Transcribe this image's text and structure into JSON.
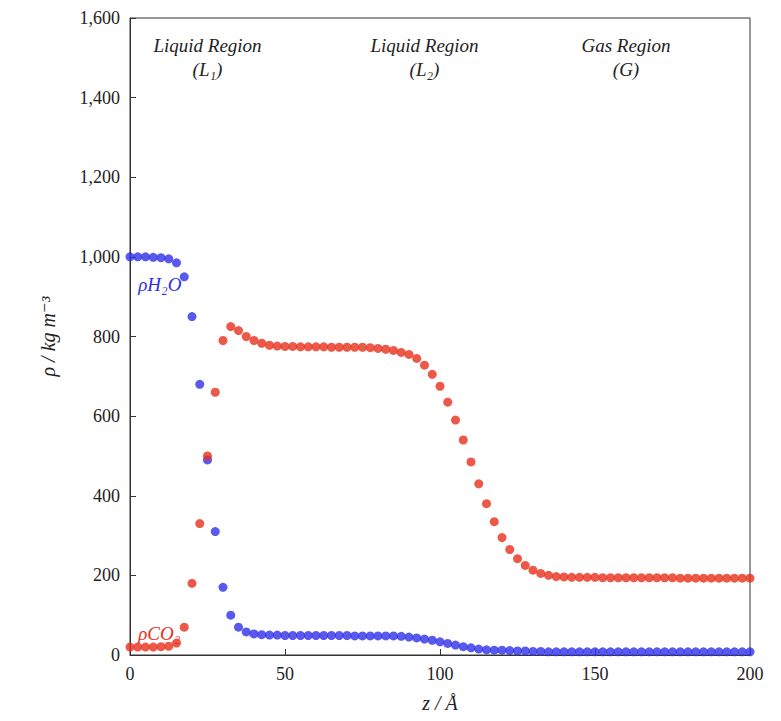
{
  "chart_data": {
    "type": "scatter",
    "x_label": "z / Å",
    "y_label": "ρ / kg m⁻³",
    "annotations": [
      "Liquid Region (L₁)",
      "Liquid Region (L₂)",
      "Gas Region (G)"
    ],
    "xlim": [
      0,
      200
    ],
    "xticks": [
      0,
      50,
      100,
      150,
      200
    ],
    "ylim": [
      0,
      1600
    ],
    "yticks": [
      0,
      200,
      400,
      600,
      800,
      1000,
      1200,
      1400,
      1600
    ],
    "grid": false,
    "marker": "circle",
    "x": [
      0,
      2.5,
      5,
      7.5,
      10,
      12.5,
      15,
      17.5,
      20,
      22.5,
      25,
      27.5,
      30,
      32.5,
      35,
      37.5,
      40,
      42.5,
      45,
      47.5,
      50,
      52.5,
      55,
      57.5,
      60,
      62.5,
      65,
      67.5,
      70,
      72.5,
      75,
      77.5,
      80,
      82.5,
      85,
      87.5,
      90,
      92.5,
      95,
      97.5,
      100,
      102.5,
      105,
      107.5,
      110,
      112.5,
      115,
      117.5,
      120,
      122.5,
      125,
      127.5,
      130,
      132.5,
      135,
      137.5,
      140,
      142.5,
      145,
      147.5,
      150,
      152.5,
      155,
      157.5,
      160,
      162.5,
      165,
      167.5,
      170,
      172.5,
      175,
      177.5,
      180,
      182.5,
      185,
      187.5,
      190,
      192.5,
      195,
      197.5,
      200
    ],
    "series": [
      {
        "name": "ρH₂O",
        "color": "#2f2fe8",
        "values": [
          1000,
          1000,
          1000,
          999,
          998,
          995,
          985,
          950,
          850,
          680,
          490,
          310,
          170,
          100,
          70,
          58,
          53,
          51,
          50,
          50,
          49,
          49,
          49,
          49,
          49,
          49,
          49,
          49,
          49,
          48,
          48,
          48,
          48,
          48,
          48,
          47,
          45,
          43,
          40,
          37,
          33,
          29,
          25,
          21,
          18,
          15,
          13,
          12,
          12,
          11,
          10,
          10,
          9,
          9,
          8,
          8,
          8,
          8,
          8,
          8,
          8,
          8,
          8,
          8,
          8,
          8,
          8,
          8,
          8,
          8,
          8,
          8,
          8,
          8,
          8,
          8,
          8,
          8,
          8,
          8,
          8
        ]
      },
      {
        "name": "ρCO₂",
        "color": "#e8301c",
        "values": [
          20,
          20,
          20,
          20,
          21,
          22,
          30,
          70,
          180,
          330,
          500,
          660,
          790,
          825,
          815,
          800,
          790,
          783,
          778,
          776,
          775,
          775,
          774,
          774,
          774,
          774,
          773,
          773,
          773,
          773,
          773,
          772,
          770,
          768,
          765,
          760,
          755,
          745,
          728,
          705,
          675,
          635,
          590,
          540,
          485,
          430,
          380,
          335,
          295,
          265,
          242,
          225,
          213,
          205,
          200,
          197,
          196,
          195,
          195,
          195,
          195,
          194,
          194,
          194,
          194,
          194,
          194,
          194,
          194,
          194,
          194,
          193,
          193,
          193,
          193,
          193,
          193,
          193,
          193,
          193,
          193
        ]
      }
    ]
  }
}
